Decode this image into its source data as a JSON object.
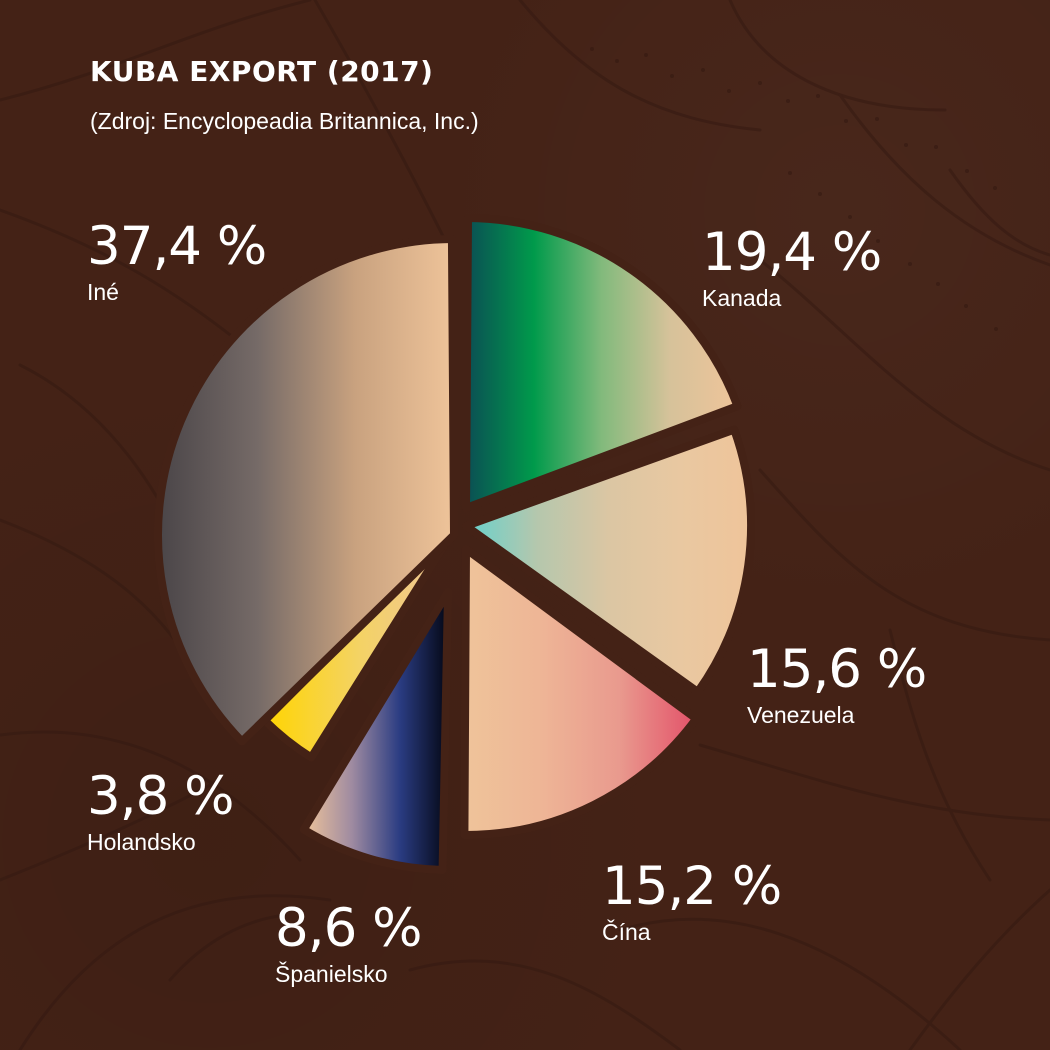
{
  "title": "KUBA EXPORT (2017)",
  "subtitle": "(Zdroj: Encyclopeadia Britannica, Inc.)",
  "chart_data": {
    "type": "pie",
    "title": "KUBA EXPORT (2017)",
    "subtitle": "(Zdroj: Encyclopeadia Britannica, Inc.)",
    "unit": "%",
    "slices": [
      {
        "name": "Kanada",
        "label": "19,4 %",
        "value": 19.4,
        "colors": [
          "#0b4e54",
          "#009a4b",
          "#82ba7c",
          "#d6c29a",
          "#efc49a"
        ]
      },
      {
        "name": "Venezuela",
        "label": "15,6 %",
        "value": 15.6,
        "colors": [
          "#67d1cc",
          "#b5c7ad",
          "#dbc6a3",
          "#e9c8a1",
          "#efc49a"
        ]
      },
      {
        "name": "Čína",
        "label": "15,2 %",
        "value": 15.2,
        "colors": [
          "#efc49a",
          "#eeb596",
          "#e99a8e",
          "#e35169"
        ]
      },
      {
        "name": "Španielsko",
        "label": "8,6 %",
        "value": 8.6,
        "colors": [
          "#efc49a",
          "#9f8ba1",
          "#2a3c82",
          "#040714"
        ]
      },
      {
        "name": "Holandsko",
        "label": "3,8 %",
        "value": 3.8,
        "colors": [
          "#ffd400",
          "#f4d364",
          "#efc49a"
        ]
      },
      {
        "name": "Iné",
        "label": "37,4 %",
        "value": 37.4,
        "colors": [
          "#4a4548",
          "#756a67",
          "#c9a27f",
          "#efc49a"
        ]
      }
    ]
  }
}
